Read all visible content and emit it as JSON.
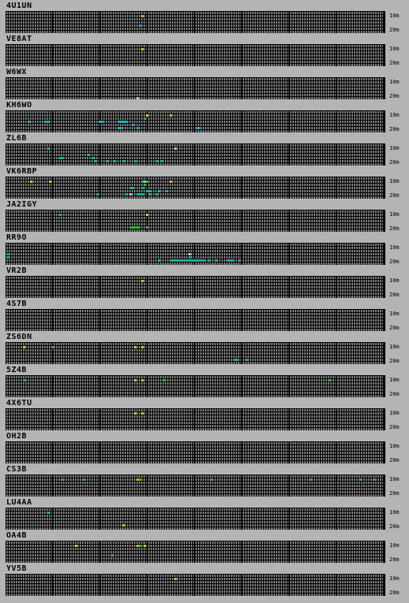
{
  "colors": {
    "background": "#b4b4b4",
    "grid_border": "#000000",
    "cell_empty": "#7a7a7a",
    "strong_green": "#22c422",
    "yellow": "#c8d11e",
    "teal": "#17b59a",
    "cyan": "#1bb2c5",
    "pale": "#b7cdc6"
  },
  "band_labels": {
    "top": "10m",
    "bottom": "20m"
  },
  "stations": [
    {
      "callsign": "4U1UN",
      "spots": [
        [
          57,
          1,
          "yellow"
        ],
        [
          56,
          4,
          "teal"
        ]
      ]
    },
    {
      "callsign": "VE8AT",
      "spots": [
        [
          57,
          1,
          "yellow"
        ]
      ]
    },
    {
      "callsign": "W6WX",
      "spots": [
        [
          55,
          6,
          "pale"
        ]
      ]
    },
    {
      "callsign": "KH6WO",
      "spots": [
        [
          59,
          1,
          "yellow"
        ],
        [
          69,
          1,
          "yellow"
        ],
        [
          58,
          2,
          "teal"
        ],
        [
          9,
          3,
          "cyan"
        ],
        [
          16,
          3,
          "cyan"
        ],
        [
          17,
          3,
          "cyan"
        ],
        [
          39,
          3,
          "cyan"
        ],
        [
          40,
          3,
          "cyan"
        ],
        [
          47,
          3,
          "cyan"
        ],
        [
          48,
          3,
          "cyan"
        ],
        [
          49,
          3,
          "cyan"
        ],
        [
          50,
          3,
          "cyan"
        ],
        [
          53,
          4,
          "cyan"
        ],
        [
          47,
          5,
          "cyan"
        ],
        [
          48,
          5,
          "cyan"
        ],
        [
          55,
          5,
          "cyan"
        ],
        [
          80,
          5,
          "cyan"
        ],
        [
          81,
          5,
          "cyan"
        ]
      ]
    },
    {
      "callsign": "ZL6B",
      "spots": [
        [
          17,
          1,
          "teal"
        ],
        [
          71,
          1,
          "pale"
        ],
        [
          34,
          3,
          "teal"
        ],
        [
          22,
          4,
          "teal"
        ],
        [
          23,
          4,
          "teal"
        ],
        [
          36,
          4,
          "teal"
        ],
        [
          37,
          5,
          "teal"
        ],
        [
          42,
          5,
          "teal"
        ],
        [
          45,
          5,
          "teal"
        ],
        [
          49,
          5,
          "teal"
        ],
        [
          54,
          5,
          "teal"
        ],
        [
          63,
          5,
          "teal"
        ],
        [
          65,
          5,
          "teal"
        ]
      ]
    },
    {
      "callsign": "VK6RBP",
      "spots": [
        [
          10,
          1,
          "yellow"
        ],
        [
          18,
          1,
          "yellow"
        ],
        [
          58,
          1,
          "yellow"
        ],
        [
          69,
          1,
          "yellow"
        ],
        [
          57,
          1,
          "teal"
        ],
        [
          59,
          1,
          "teal"
        ],
        [
          58,
          2,
          "teal"
        ],
        [
          52,
          3,
          "teal"
        ],
        [
          53,
          3,
          "teal"
        ],
        [
          57,
          3,
          "teal"
        ],
        [
          59,
          4,
          "teal"
        ],
        [
          60,
          4,
          "teal"
        ],
        [
          64,
          4,
          "teal"
        ],
        [
          67,
          4,
          "teal"
        ],
        [
          38,
          5,
          "teal"
        ],
        [
          50,
          5,
          "teal"
        ],
        [
          52,
          5,
          "pale"
        ],
        [
          55,
          5,
          "teal"
        ],
        [
          56,
          5,
          "teal"
        ],
        [
          57,
          5,
          "teal"
        ],
        [
          60,
          5,
          "teal"
        ],
        [
          63,
          5,
          "teal"
        ]
      ]
    },
    {
      "callsign": "JA2IGY",
      "spots": [
        [
          22,
          1,
          "strong_green"
        ],
        [
          59,
          1,
          "yellow"
        ],
        [
          52,
          5,
          "strong_green"
        ],
        [
          53,
          5,
          "strong_green"
        ],
        [
          54,
          5,
          "strong_green"
        ],
        [
          55,
          5,
          "strong_green"
        ],
        [
          59,
          5,
          "strong_green"
        ]
      ]
    },
    {
      "callsign": "RR9O",
      "spots": [
        [
          0,
          3,
          "teal"
        ],
        [
          77,
          3,
          "pale"
        ],
        [
          0,
          4,
          "teal"
        ],
        [
          77,
          4,
          "teal"
        ],
        [
          64,
          5,
          "teal"
        ],
        [
          69,
          5,
          "teal"
        ],
        [
          70,
          5,
          "teal"
        ],
        [
          71,
          5,
          "teal"
        ],
        [
          72,
          5,
          "teal"
        ],
        [
          73,
          5,
          "teal"
        ],
        [
          74,
          5,
          "teal"
        ],
        [
          75,
          5,
          "teal"
        ],
        [
          76,
          5,
          "teal"
        ],
        [
          77,
          5,
          "teal"
        ],
        [
          78,
          5,
          "teal"
        ],
        [
          79,
          5,
          "teal"
        ],
        [
          80,
          5,
          "teal"
        ],
        [
          81,
          5,
          "teal"
        ],
        [
          82,
          5,
          "teal"
        ],
        [
          83,
          5,
          "teal"
        ],
        [
          85,
          5,
          "teal"
        ],
        [
          88,
          5,
          "teal"
        ],
        [
          93,
          5,
          "teal"
        ],
        [
          94,
          5,
          "teal"
        ],
        [
          95,
          5,
          "teal"
        ],
        [
          98,
          5,
          "teal"
        ]
      ]
    },
    {
      "callsign": "VR2B",
      "spots": [
        [
          57,
          1,
          "yellow"
        ]
      ]
    },
    {
      "callsign": "4S7B",
      "spots": []
    },
    {
      "callsign": "ZS6DN",
      "spots": [
        [
          7,
          1,
          "yellow"
        ],
        [
          19,
          1,
          "strong_green"
        ],
        [
          54,
          1,
          "yellow"
        ],
        [
          57,
          1,
          "yellow"
        ],
        [
          96,
          5,
          "teal"
        ],
        [
          97,
          5,
          "teal"
        ],
        [
          101,
          5,
          "teal"
        ]
      ]
    },
    {
      "callsign": "5Z4B",
      "spots": [
        [
          7,
          1,
          "strong_green"
        ],
        [
          54,
          1,
          "yellow"
        ],
        [
          57,
          1,
          "yellow"
        ],
        [
          66,
          1,
          "strong_green"
        ],
        [
          136,
          1,
          "strong_green"
        ]
      ]
    },
    {
      "callsign": "4X6TU",
      "spots": [
        [
          54,
          1,
          "yellow"
        ],
        [
          57,
          1,
          "yellow"
        ]
      ]
    },
    {
      "callsign": "OH2B",
      "spots": []
    },
    {
      "callsign": "CS3B",
      "spots": [
        [
          23,
          1,
          "strong_green"
        ],
        [
          32,
          1,
          "strong_green"
        ],
        [
          55,
          1,
          "yellow"
        ],
        [
          56,
          1,
          "strong_green"
        ],
        [
          86,
          1,
          "strong_green"
        ],
        [
          128,
          1,
          "strong_green"
        ],
        [
          149,
          1,
          "strong_green"
        ],
        [
          155,
          1,
          "strong_green"
        ]
      ]
    },
    {
      "callsign": "LU4AA",
      "spots": [
        [
          17,
          1,
          "teal"
        ],
        [
          49,
          5,
          "yellow"
        ]
      ]
    },
    {
      "callsign": "OA4B",
      "spots": [
        [
          29,
          1,
          "yellow"
        ],
        [
          55,
          1,
          "yellow"
        ],
        [
          58,
          1,
          "yellow"
        ],
        [
          56,
          1,
          "strong_green"
        ],
        [
          44,
          4,
          "strong_green"
        ]
      ]
    },
    {
      "callsign": "YV5B",
      "spots": [
        [
          71,
          1,
          "yellow"
        ]
      ]
    }
  ]
}
